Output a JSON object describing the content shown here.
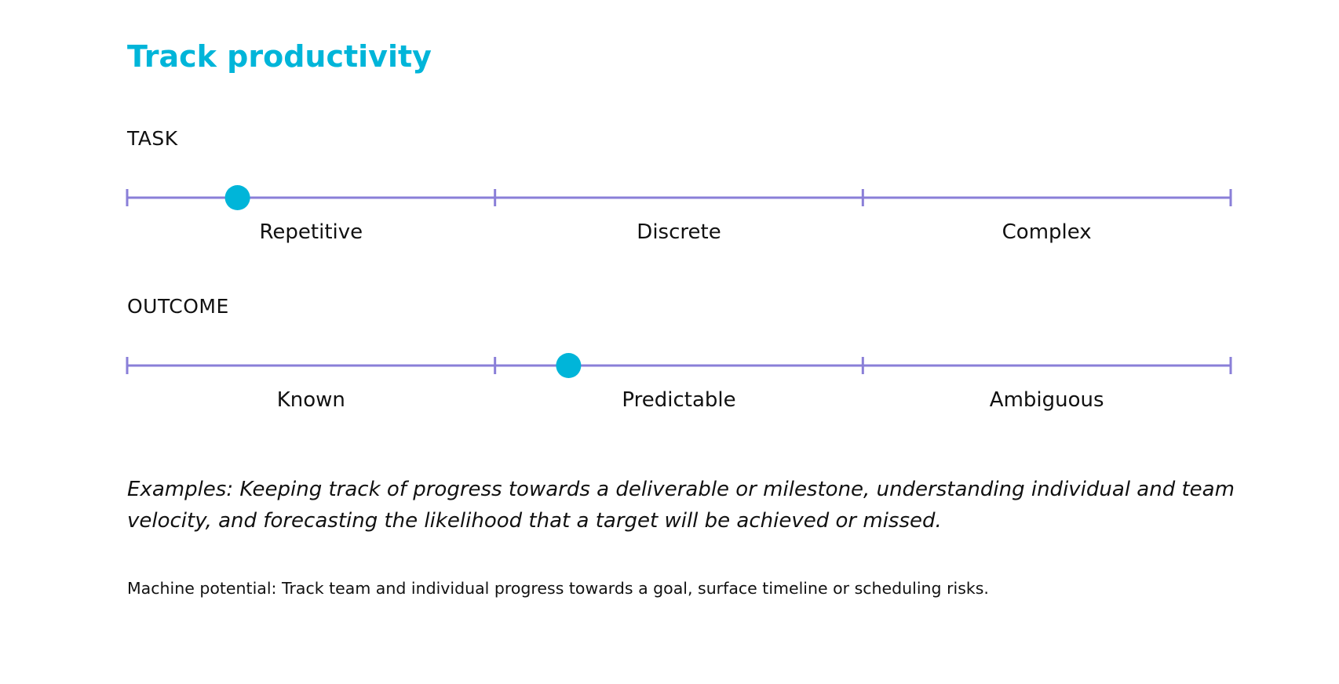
{
  "title": "Track productivity",
  "colors": {
    "title": "#00b5d9",
    "scale_line": "#8a7fd8",
    "marker": "#00b5d9",
    "text": "#111111"
  },
  "scales": [
    {
      "heading": "TASK",
      "segments": [
        "Repetitive",
        "Discrete",
        "Complex"
      ],
      "marker_position": 0.1
    },
    {
      "heading": "OUTCOME",
      "segments": [
        "Known",
        "Predictable",
        "Ambiguous"
      ],
      "marker_position": 0.4
    }
  ],
  "examples": "Examples: Keeping track of progress towards a deliverable or milestone, understanding individual and team velocity, and forecasting the likelihood that a target will be achieved or missed.",
  "machine_potential": "Machine potential: Track team and individual progress towards a goal, surface timeline or scheduling risks."
}
